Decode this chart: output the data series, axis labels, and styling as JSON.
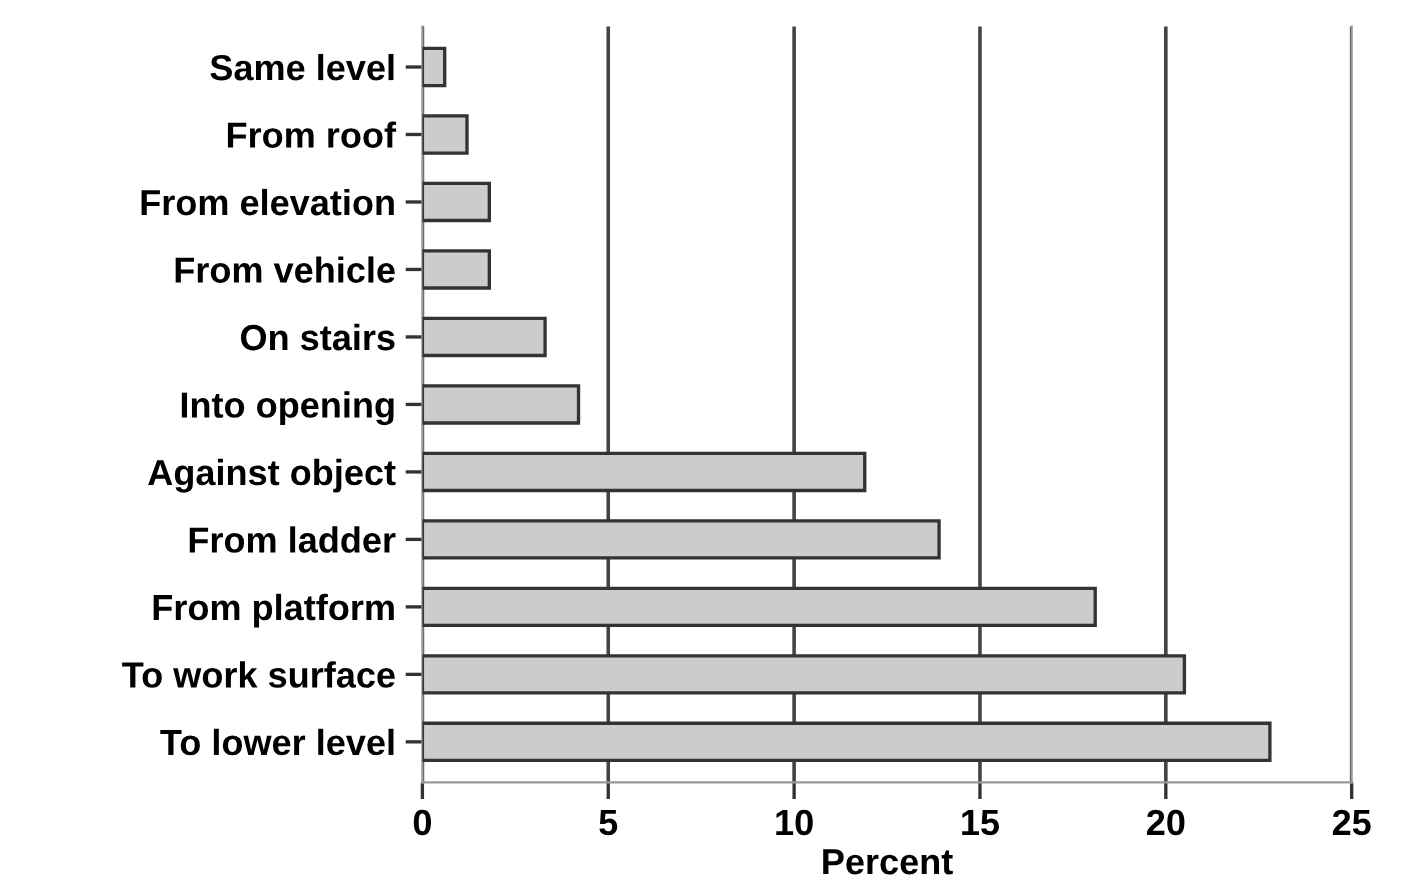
{
  "chart_data": {
    "type": "bar",
    "orientation": "horizontal",
    "xlabel": "Percent",
    "categories": [
      "Same level",
      "From roof",
      "From elevation",
      "From vehicle",
      "On stairs",
      "Into opening",
      "Against object",
      "From ladder",
      "From platform",
      "To work surface",
      "To lower level"
    ],
    "values": [
      0.6,
      1.2,
      1.8,
      1.8,
      3.3,
      4.2,
      11.9,
      13.9,
      18.1,
      20.5,
      22.8
    ],
    "color": "#cccccc",
    "xlim": [
      0,
      25
    ],
    "xticks": [
      0,
      5,
      10,
      15,
      20,
      25
    ],
    "grid": "x",
    "legend": false
  }
}
